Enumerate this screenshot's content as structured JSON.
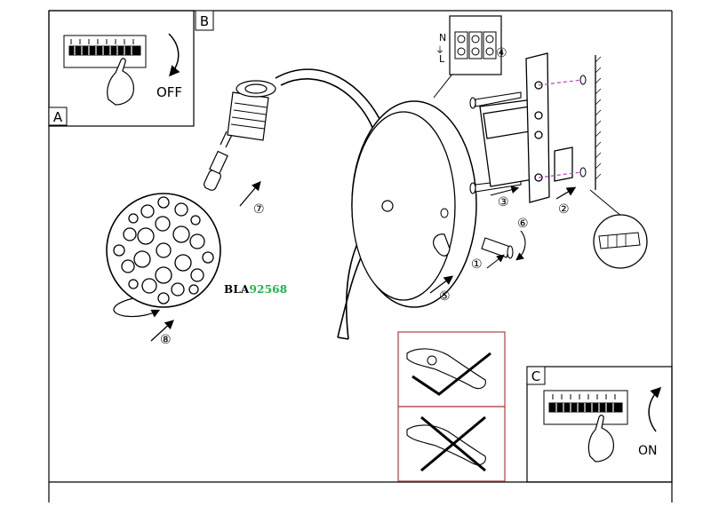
{
  "panels": {
    "a": {
      "letter": "A"
    },
    "b": {
      "letter": "B",
      "state_label": "OFF"
    },
    "c": {
      "letter": "C",
      "state_label": "ON"
    }
  },
  "step_numbers": [
    "①",
    "②",
    "③",
    "④",
    "⑤",
    "⑥",
    "⑦",
    "⑧"
  ],
  "connector_labels": {
    "neutral": "N",
    "line": "L"
  },
  "product_code": {
    "prefix": "BLA",
    "number": "92568"
  },
  "colors": {
    "line": "#000000",
    "panel_border": "#b04040",
    "code_number": "#1fb34a",
    "dashed_drill": "#c040c0"
  }
}
